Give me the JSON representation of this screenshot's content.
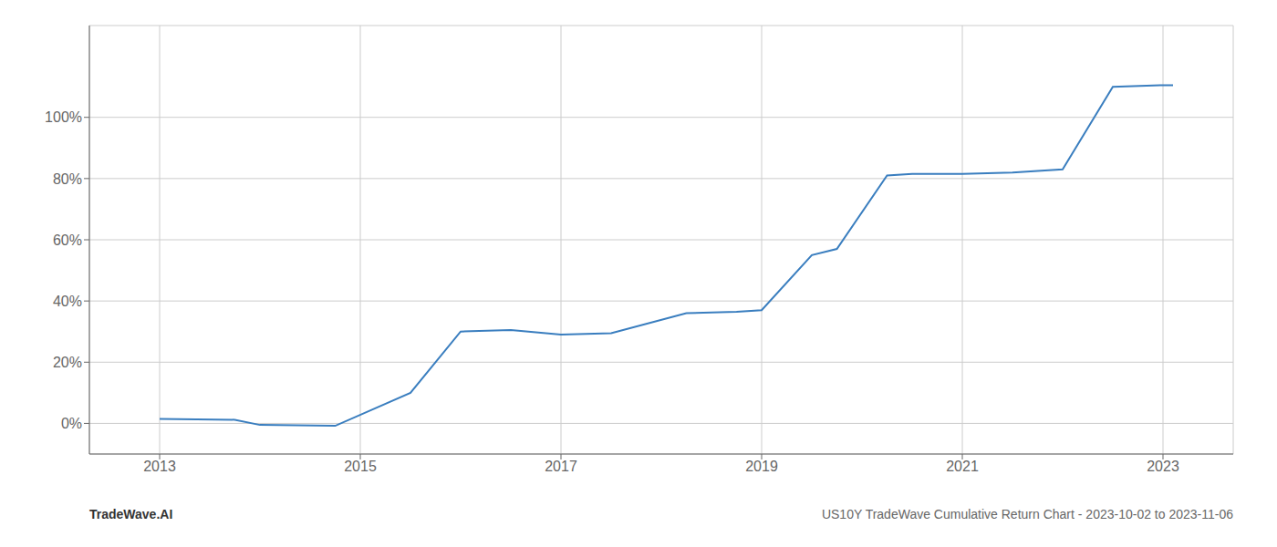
{
  "chart_data": {
    "type": "line",
    "x": [
      2013.0,
      2013.75,
      2014.0,
      2014.75,
      2015.5,
      2016.0,
      2016.5,
      2017.0,
      2017.5,
      2018.25,
      2018.75,
      2019.0,
      2019.5,
      2019.75,
      2020.25,
      2020.5,
      2020.75,
      2021.0,
      2021.5,
      2022.0,
      2022.5,
      2023.0,
      2023.1
    ],
    "values": [
      1.5,
      1.2,
      -0.5,
      -0.8,
      10.0,
      30.0,
      30.5,
      29.0,
      29.5,
      36.0,
      36.5,
      37.0,
      55.0,
      57.0,
      81.0,
      81.5,
      81.5,
      81.5,
      82.0,
      83.0,
      110.0,
      110.5,
      110.5
    ],
    "color": "#3a7ebf",
    "xlim": [
      2012.3,
      2023.7
    ],
    "ylim": [
      -10,
      130
    ],
    "xticks": [
      2013,
      2015,
      2017,
      2019,
      2021,
      2023
    ],
    "yticks": [
      {
        "value": 0,
        "label": "0%"
      },
      {
        "value": 20,
        "label": "20%"
      },
      {
        "value": 40,
        "label": "40%"
      },
      {
        "value": 60,
        "label": "60%"
      },
      {
        "value": 80,
        "label": "80%"
      },
      {
        "value": 100,
        "label": "100%"
      }
    ],
    "grid": true,
    "annotations": [
      "TradeWave.AI",
      "US10Y TradeWave Cumulative Return Chart - 2023-10-02 to 2023-11-06"
    ]
  }
}
